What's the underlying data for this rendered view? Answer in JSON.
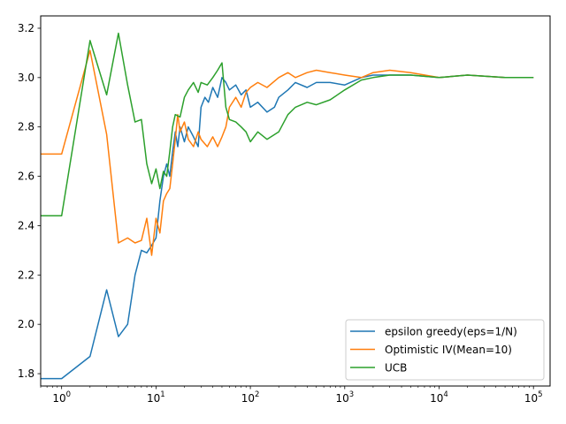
{
  "chart_data": {
    "type": "line",
    "xscale": "log",
    "xlim": [
      0.6,
      150000
    ],
    "ylim": [
      1.75,
      3.25
    ],
    "x_ticks": [
      {
        "value": 1,
        "base": "10",
        "exp": "0"
      },
      {
        "value": 10,
        "base": "10",
        "exp": "1"
      },
      {
        "value": 100,
        "base": "10",
        "exp": "2"
      },
      {
        "value": 1000,
        "base": "10",
        "exp": "3"
      },
      {
        "value": 10000,
        "base": "10",
        "exp": "4"
      },
      {
        "value": 100000,
        "base": "10",
        "exp": "5"
      }
    ],
    "y_ticks": [
      1.8,
      2.0,
      2.2,
      2.4,
      2.6,
      2.8,
      3.0,
      3.2
    ],
    "y_tick_labels": [
      "1.8",
      "2.0",
      "2.2",
      "2.4",
      "2.6",
      "2.8",
      "3.0",
      "3.2"
    ],
    "grid": false,
    "legend_position": "lower-right",
    "series": [
      {
        "name": "epsilon greedy(eps=1/N)",
        "color": "#1f77b4",
        "points": [
          [
            0.5,
            1.78
          ],
          [
            1,
            1.78
          ],
          [
            2,
            1.87
          ],
          [
            3,
            2.14
          ],
          [
            4,
            1.95
          ],
          [
            5,
            2.0
          ],
          [
            6,
            2.2
          ],
          [
            7,
            2.3
          ],
          [
            8,
            2.29
          ],
          [
            9,
            2.32
          ],
          [
            10,
            2.35
          ],
          [
            11,
            2.5
          ],
          [
            12,
            2.6
          ],
          [
            13,
            2.65
          ],
          [
            14,
            2.6
          ],
          [
            15,
            2.7
          ],
          [
            16,
            2.78
          ],
          [
            17,
            2.72
          ],
          [
            18,
            2.8
          ],
          [
            20,
            2.74
          ],
          [
            22,
            2.8
          ],
          [
            25,
            2.76
          ],
          [
            28,
            2.72
          ],
          [
            30,
            2.88
          ],
          [
            33,
            2.92
          ],
          [
            36,
            2.9
          ],
          [
            40,
            2.96
          ],
          [
            45,
            2.92
          ],
          [
            50,
            3.0
          ],
          [
            55,
            2.98
          ],
          [
            60,
            2.95
          ],
          [
            70,
            2.97
          ],
          [
            80,
            2.93
          ],
          [
            90,
            2.95
          ],
          [
            100,
            2.88
          ],
          [
            120,
            2.9
          ],
          [
            150,
            2.86
          ],
          [
            180,
            2.88
          ],
          [
            200,
            2.92
          ],
          [
            250,
            2.95
          ],
          [
            300,
            2.98
          ],
          [
            400,
            2.96
          ],
          [
            500,
            2.98
          ],
          [
            700,
            2.98
          ],
          [
            1000,
            2.97
          ],
          [
            1500,
            3.0
          ],
          [
            2000,
            3.01
          ],
          [
            3000,
            3.01
          ],
          [
            5000,
            3.01
          ],
          [
            10000,
            3.0
          ],
          [
            20000,
            3.01
          ],
          [
            50000,
            3.0
          ],
          [
            100000,
            3.0
          ]
        ]
      },
      {
        "name": "Optimistic IV(Mean=10)",
        "color": "#ff7f0e",
        "points": [
          [
            0.5,
            2.69
          ],
          [
            1,
            2.69
          ],
          [
            2,
            3.11
          ],
          [
            3,
            2.77
          ],
          [
            4,
            2.33
          ],
          [
            5,
            2.35
          ],
          [
            6,
            2.33
          ],
          [
            7,
            2.34
          ],
          [
            8,
            2.43
          ],
          [
            9,
            2.28
          ],
          [
            10,
            2.43
          ],
          [
            11,
            2.37
          ],
          [
            12,
            2.5
          ],
          [
            13,
            2.53
          ],
          [
            14,
            2.55
          ],
          [
            15,
            2.65
          ],
          [
            16,
            2.75
          ],
          [
            17,
            2.85
          ],
          [
            18,
            2.78
          ],
          [
            20,
            2.82
          ],
          [
            22,
            2.75
          ],
          [
            25,
            2.72
          ],
          [
            28,
            2.78
          ],
          [
            30,
            2.75
          ],
          [
            35,
            2.72
          ],
          [
            40,
            2.76
          ],
          [
            45,
            2.72
          ],
          [
            50,
            2.76
          ],
          [
            55,
            2.8
          ],
          [
            60,
            2.88
          ],
          [
            70,
            2.92
          ],
          [
            80,
            2.88
          ],
          [
            90,
            2.94
          ],
          [
            100,
            2.96
          ],
          [
            120,
            2.98
          ],
          [
            150,
            2.96
          ],
          [
            200,
            3.0
          ],
          [
            250,
            3.02
          ],
          [
            300,
            3.0
          ],
          [
            400,
            3.02
          ],
          [
            500,
            3.03
          ],
          [
            700,
            3.02
          ],
          [
            1000,
            3.01
          ],
          [
            1500,
            3.0
          ],
          [
            2000,
            3.02
          ],
          [
            3000,
            3.03
          ],
          [
            5000,
            3.02
          ],
          [
            10000,
            3.0
          ],
          [
            20000,
            3.01
          ],
          [
            50000,
            3.0
          ],
          [
            100000,
            3.0
          ]
        ]
      },
      {
        "name": "UCB",
        "color": "#2ca02c",
        "points": [
          [
            0.5,
            2.44
          ],
          [
            1,
            2.44
          ],
          [
            2,
            3.15
          ],
          [
            3,
            2.93
          ],
          [
            4,
            3.18
          ],
          [
            5,
            2.97
          ],
          [
            6,
            2.82
          ],
          [
            7,
            2.83
          ],
          [
            8,
            2.65
          ],
          [
            9,
            2.57
          ],
          [
            10,
            2.63
          ],
          [
            11,
            2.55
          ],
          [
            12,
            2.62
          ],
          [
            13,
            2.6
          ],
          [
            14,
            2.7
          ],
          [
            15,
            2.8
          ],
          [
            16,
            2.85
          ],
          [
            18,
            2.84
          ],
          [
            20,
            2.92
          ],
          [
            22,
            2.95
          ],
          [
            25,
            2.98
          ],
          [
            28,
            2.94
          ],
          [
            30,
            2.98
          ],
          [
            35,
            2.97
          ],
          [
            40,
            3.0
          ],
          [
            45,
            3.03
          ],
          [
            50,
            3.06
          ],
          [
            55,
            2.88
          ],
          [
            60,
            2.83
          ],
          [
            70,
            2.82
          ],
          [
            80,
            2.8
          ],
          [
            90,
            2.78
          ],
          [
            100,
            2.74
          ],
          [
            120,
            2.78
          ],
          [
            150,
            2.75
          ],
          [
            200,
            2.78
          ],
          [
            250,
            2.85
          ],
          [
            300,
            2.88
          ],
          [
            400,
            2.9
          ],
          [
            500,
            2.89
          ],
          [
            700,
            2.91
          ],
          [
            1000,
            2.95
          ],
          [
            1500,
            2.99
          ],
          [
            2000,
            3.0
          ],
          [
            3000,
            3.01
          ],
          [
            5000,
            3.01
          ],
          [
            10000,
            3.0
          ],
          [
            20000,
            3.01
          ],
          [
            50000,
            3.0
          ],
          [
            100000,
            3.0
          ]
        ]
      }
    ]
  }
}
